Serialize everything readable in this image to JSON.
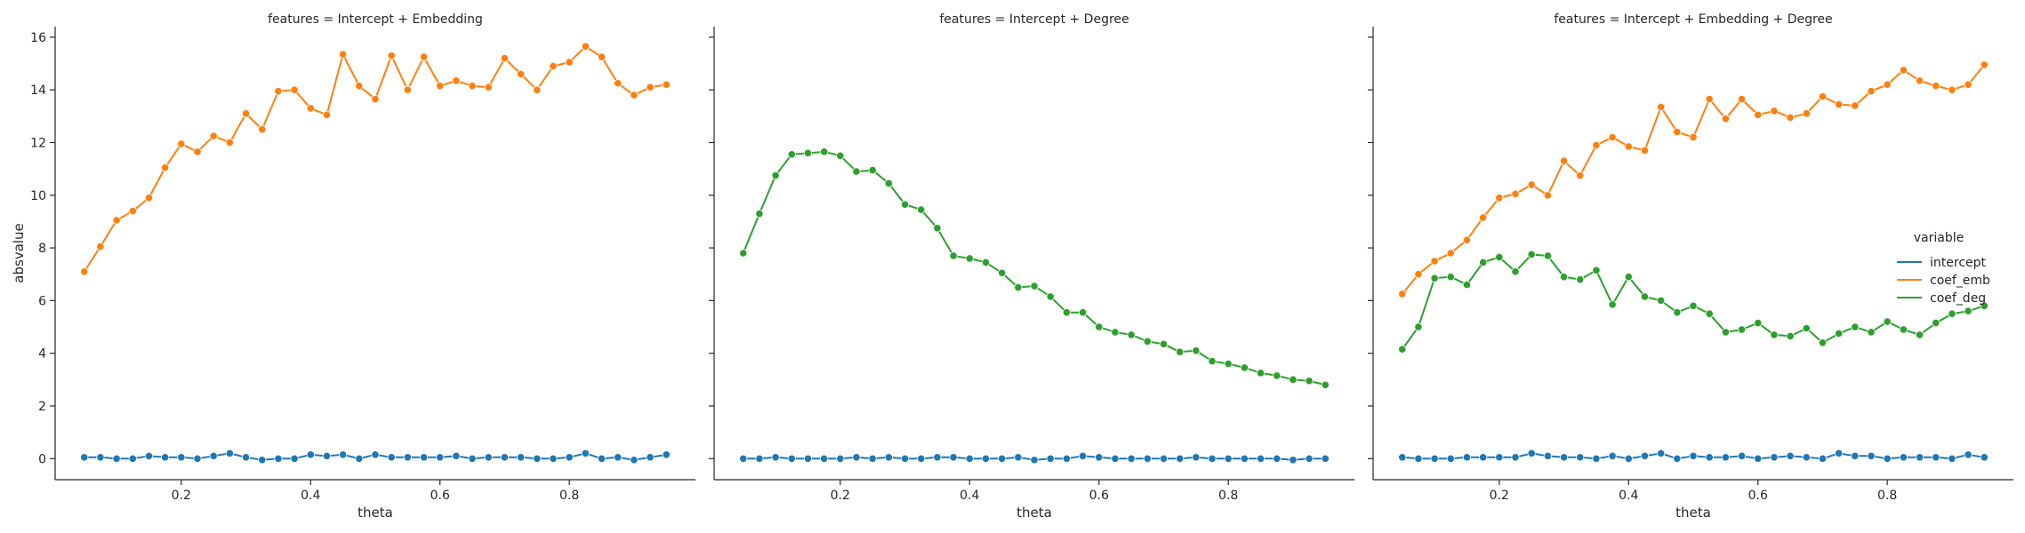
{
  "chart_data": {
    "type": "line",
    "ylabel": "absvalue",
    "xlabel": "theta",
    "ylim": [
      -0.8,
      16.4
    ],
    "xlim": [
      0.005,
      0.995
    ],
    "yticks": [
      0,
      2,
      4,
      6,
      8,
      10,
      12,
      14,
      16
    ],
    "xticks": [
      0.2,
      0.4,
      0.6,
      0.8
    ],
    "legend": {
      "title": "variable",
      "placement": "right",
      "entries": [
        "intercept",
        "coef_emb",
        "coef_deg"
      ]
    },
    "colors": {
      "intercept": "#1f77b4",
      "coef_emb": "#ff7f0e",
      "coef_deg": "#2ca02c"
    },
    "x": [
      0.05,
      0.075,
      0.1,
      0.125,
      0.15,
      0.175,
      0.2,
      0.225,
      0.25,
      0.275,
      0.3,
      0.325,
      0.35,
      0.375,
      0.4,
      0.425,
      0.45,
      0.475,
      0.5,
      0.525,
      0.55,
      0.575,
      0.6,
      0.625,
      0.65,
      0.675,
      0.7,
      0.725,
      0.75,
      0.775,
      0.8,
      0.825,
      0.85,
      0.875,
      0.9,
      0.925,
      0.95
    ],
    "panels": [
      {
        "title": "features = Intercept + Embedding",
        "series": [
          {
            "name": "intercept",
            "values": [
              0.05,
              0.05,
              0.0,
              0.0,
              0.1,
              0.05,
              0.05,
              0.0,
              0.1,
              0.2,
              0.05,
              -0.05,
              0.0,
              0.0,
              0.15,
              0.1,
              0.15,
              0.0,
              0.15,
              0.05,
              0.05,
              0.05,
              0.05,
              0.1,
              0.0,
              0.05,
              0.05,
              0.05,
              0.0,
              0.0,
              0.05,
              0.2,
              0.0,
              0.05,
              -0.05,
              0.05,
              0.15
            ]
          },
          {
            "name": "coef_emb",
            "values": [
              7.1,
              8.05,
              9.05,
              9.4,
              9.9,
              11.05,
              11.95,
              11.65,
              12.25,
              12.0,
              13.1,
              12.5,
              13.95,
              14.0,
              13.3,
              13.05,
              15.35,
              14.15,
              13.65,
              15.3,
              14.0,
              15.25,
              14.15,
              14.35,
              14.15,
              14.1,
              15.2,
              14.6,
              14.0,
              14.9,
              15.05,
              15.65,
              15.25,
              14.25,
              13.8,
              14.1,
              14.2
            ]
          }
        ]
      },
      {
        "title": "features = Intercept + Degree",
        "series": [
          {
            "name": "intercept",
            "values": [
              0.0,
              0.0,
              0.05,
              0.0,
              0.0,
              0.0,
              0.0,
              0.05,
              0.0,
              0.05,
              0.0,
              0.0,
              0.05,
              0.05,
              0.0,
              0.0,
              0.0,
              0.05,
              -0.05,
              0.0,
              0.0,
              0.1,
              0.05,
              0.0,
              0.0,
              0.0,
              0.0,
              0.0,
              0.05,
              0.0,
              0.0,
              0.0,
              0.0,
              0.0,
              -0.05,
              0.0,
              0.0
            ]
          },
          {
            "name": "coef_deg",
            "values": [
              7.8,
              9.3,
              10.75,
              11.55,
              11.6,
              11.65,
              11.5,
              10.9,
              10.95,
              10.45,
              9.65,
              9.45,
              8.75,
              7.7,
              7.6,
              7.45,
              7.05,
              6.5,
              6.55,
              6.15,
              5.55,
              5.55,
              5.0,
              4.8,
              4.7,
              4.45,
              4.35,
              4.05,
              4.1,
              3.7,
              3.6,
              3.45,
              3.25,
              3.15,
              3.0,
              2.95,
              2.8
            ]
          }
        ]
      },
      {
        "title": "features = Intercept + Embedding + Degree",
        "series": [
          {
            "name": "intercept",
            "values": [
              0.05,
              0.0,
              0.0,
              0.0,
              0.05,
              0.05,
              0.05,
              0.05,
              0.2,
              0.1,
              0.05,
              0.05,
              0.0,
              0.1,
              0.0,
              0.1,
              0.2,
              0.0,
              0.1,
              0.05,
              0.05,
              0.1,
              0.0,
              0.05,
              0.1,
              0.05,
              0.0,
              0.2,
              0.1,
              0.1,
              0.0,
              0.05,
              0.05,
              0.05,
              0.0,
              0.15,
              0.05
            ]
          },
          {
            "name": "coef_emb",
            "values": [
              6.25,
              7.0,
              7.5,
              7.8,
              8.3,
              9.15,
              9.9,
              10.05,
              10.4,
              10.0,
              11.3,
              10.75,
              11.9,
              12.2,
              11.85,
              11.7,
              13.35,
              12.4,
              12.2,
              13.65,
              12.9,
              13.65,
              13.05,
              13.2,
              12.95,
              13.1,
              13.75,
              13.45,
              13.4,
              13.95,
              14.2,
              14.75,
              14.35,
              14.15,
              14.0,
              14.2,
              14.95
            ]
          },
          {
            "name": "coef_deg",
            "values": [
              4.15,
              5.0,
              6.85,
              6.9,
              6.6,
              7.45,
              7.65,
              7.1,
              7.75,
              7.7,
              6.9,
              6.8,
              7.15,
              5.85,
              6.9,
              6.15,
              6.0,
              5.55,
              5.8,
              5.5,
              4.8,
              4.9,
              5.15,
              4.7,
              4.65,
              4.95,
              4.4,
              4.75,
              5.0,
              4.8,
              5.2,
              4.9,
              4.7,
              5.15,
              5.5,
              5.6,
              5.8
            ]
          }
        ]
      }
    ]
  }
}
